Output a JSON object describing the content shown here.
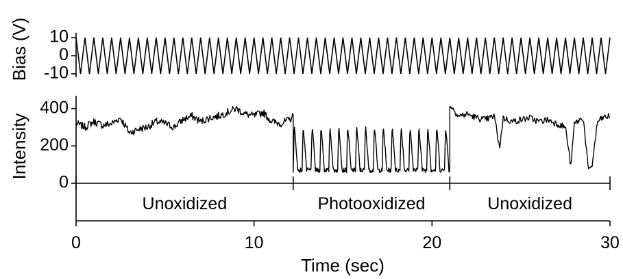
{
  "chart_data": [
    {
      "type": "line",
      "panel": "bias",
      "ylabel": "Bias (V)",
      "ylim": [
        -10,
        10
      ],
      "yticks": [
        10,
        0,
        -10
      ],
      "xlim": [
        0,
        30
      ],
      "series": [
        {
          "waveform": "triangle",
          "amplitude": 10,
          "offset": 0,
          "period_sec": 0.5,
          "cycles": 60
        }
      ]
    },
    {
      "type": "line",
      "panel": "intensity",
      "ylabel": "Intensity",
      "ylim": [
        0,
        450
      ],
      "yticks": [
        400,
        200,
        0
      ],
      "xlim": [
        0,
        30
      ],
      "series": [
        {
          "x": [
            0,
            0.5,
            1,
            1.5,
            2,
            2.5,
            3,
            3.5,
            4,
            4.5,
            5,
            5.5,
            6,
            6.5,
            7,
            7.5,
            8,
            8.5,
            9,
            9.5,
            10,
            10.5,
            11,
            11.5,
            12,
            12.2
          ],
          "y": [
            320,
            300,
            330,
            310,
            320,
            350,
            270,
            290,
            300,
            330,
            320,
            300,
            340,
            360,
            330,
            350,
            360,
            380,
            400,
            370,
            360,
            380,
            330,
            320,
            340,
            360
          ]
        },
        {
          "x": [
            12.2,
            21.0
          ],
          "y_low": 70,
          "y_high": 310,
          "burst_period_sec": 0.5
        },
        {
          "x": [
            21.0,
            21.5,
            22,
            22.5,
            23,
            23.5,
            23.8,
            24,
            24.5,
            25,
            25.5,
            26,
            26.5,
            27,
            27.5,
            27.8,
            28,
            28.5,
            28.8,
            29,
            29.3,
            29.6,
            30
          ],
          "y": [
            420,
            360,
            370,
            350,
            340,
            360,
            190,
            350,
            330,
            340,
            350,
            330,
            340,
            320,
            300,
            90,
            320,
            350,
            60,
            100,
            330,
            350,
            360
          ]
        }
      ]
    },
    {
      "type": "table",
      "panel": "segments",
      "xlabel": "Time (sec)",
      "xlim": [
        0,
        30
      ],
      "xticks": [
        0,
        10,
        20,
        30
      ],
      "boundaries": [
        0,
        12.2,
        21.0,
        30
      ],
      "segments": [
        {
          "label": "Unoxidized",
          "start": 0,
          "end": 12.2
        },
        {
          "label": "Photooxidized",
          "start": 12.2,
          "end": 21.0
        },
        {
          "label": "Unoxidized",
          "start": 21.0,
          "end": 30
        }
      ]
    }
  ]
}
